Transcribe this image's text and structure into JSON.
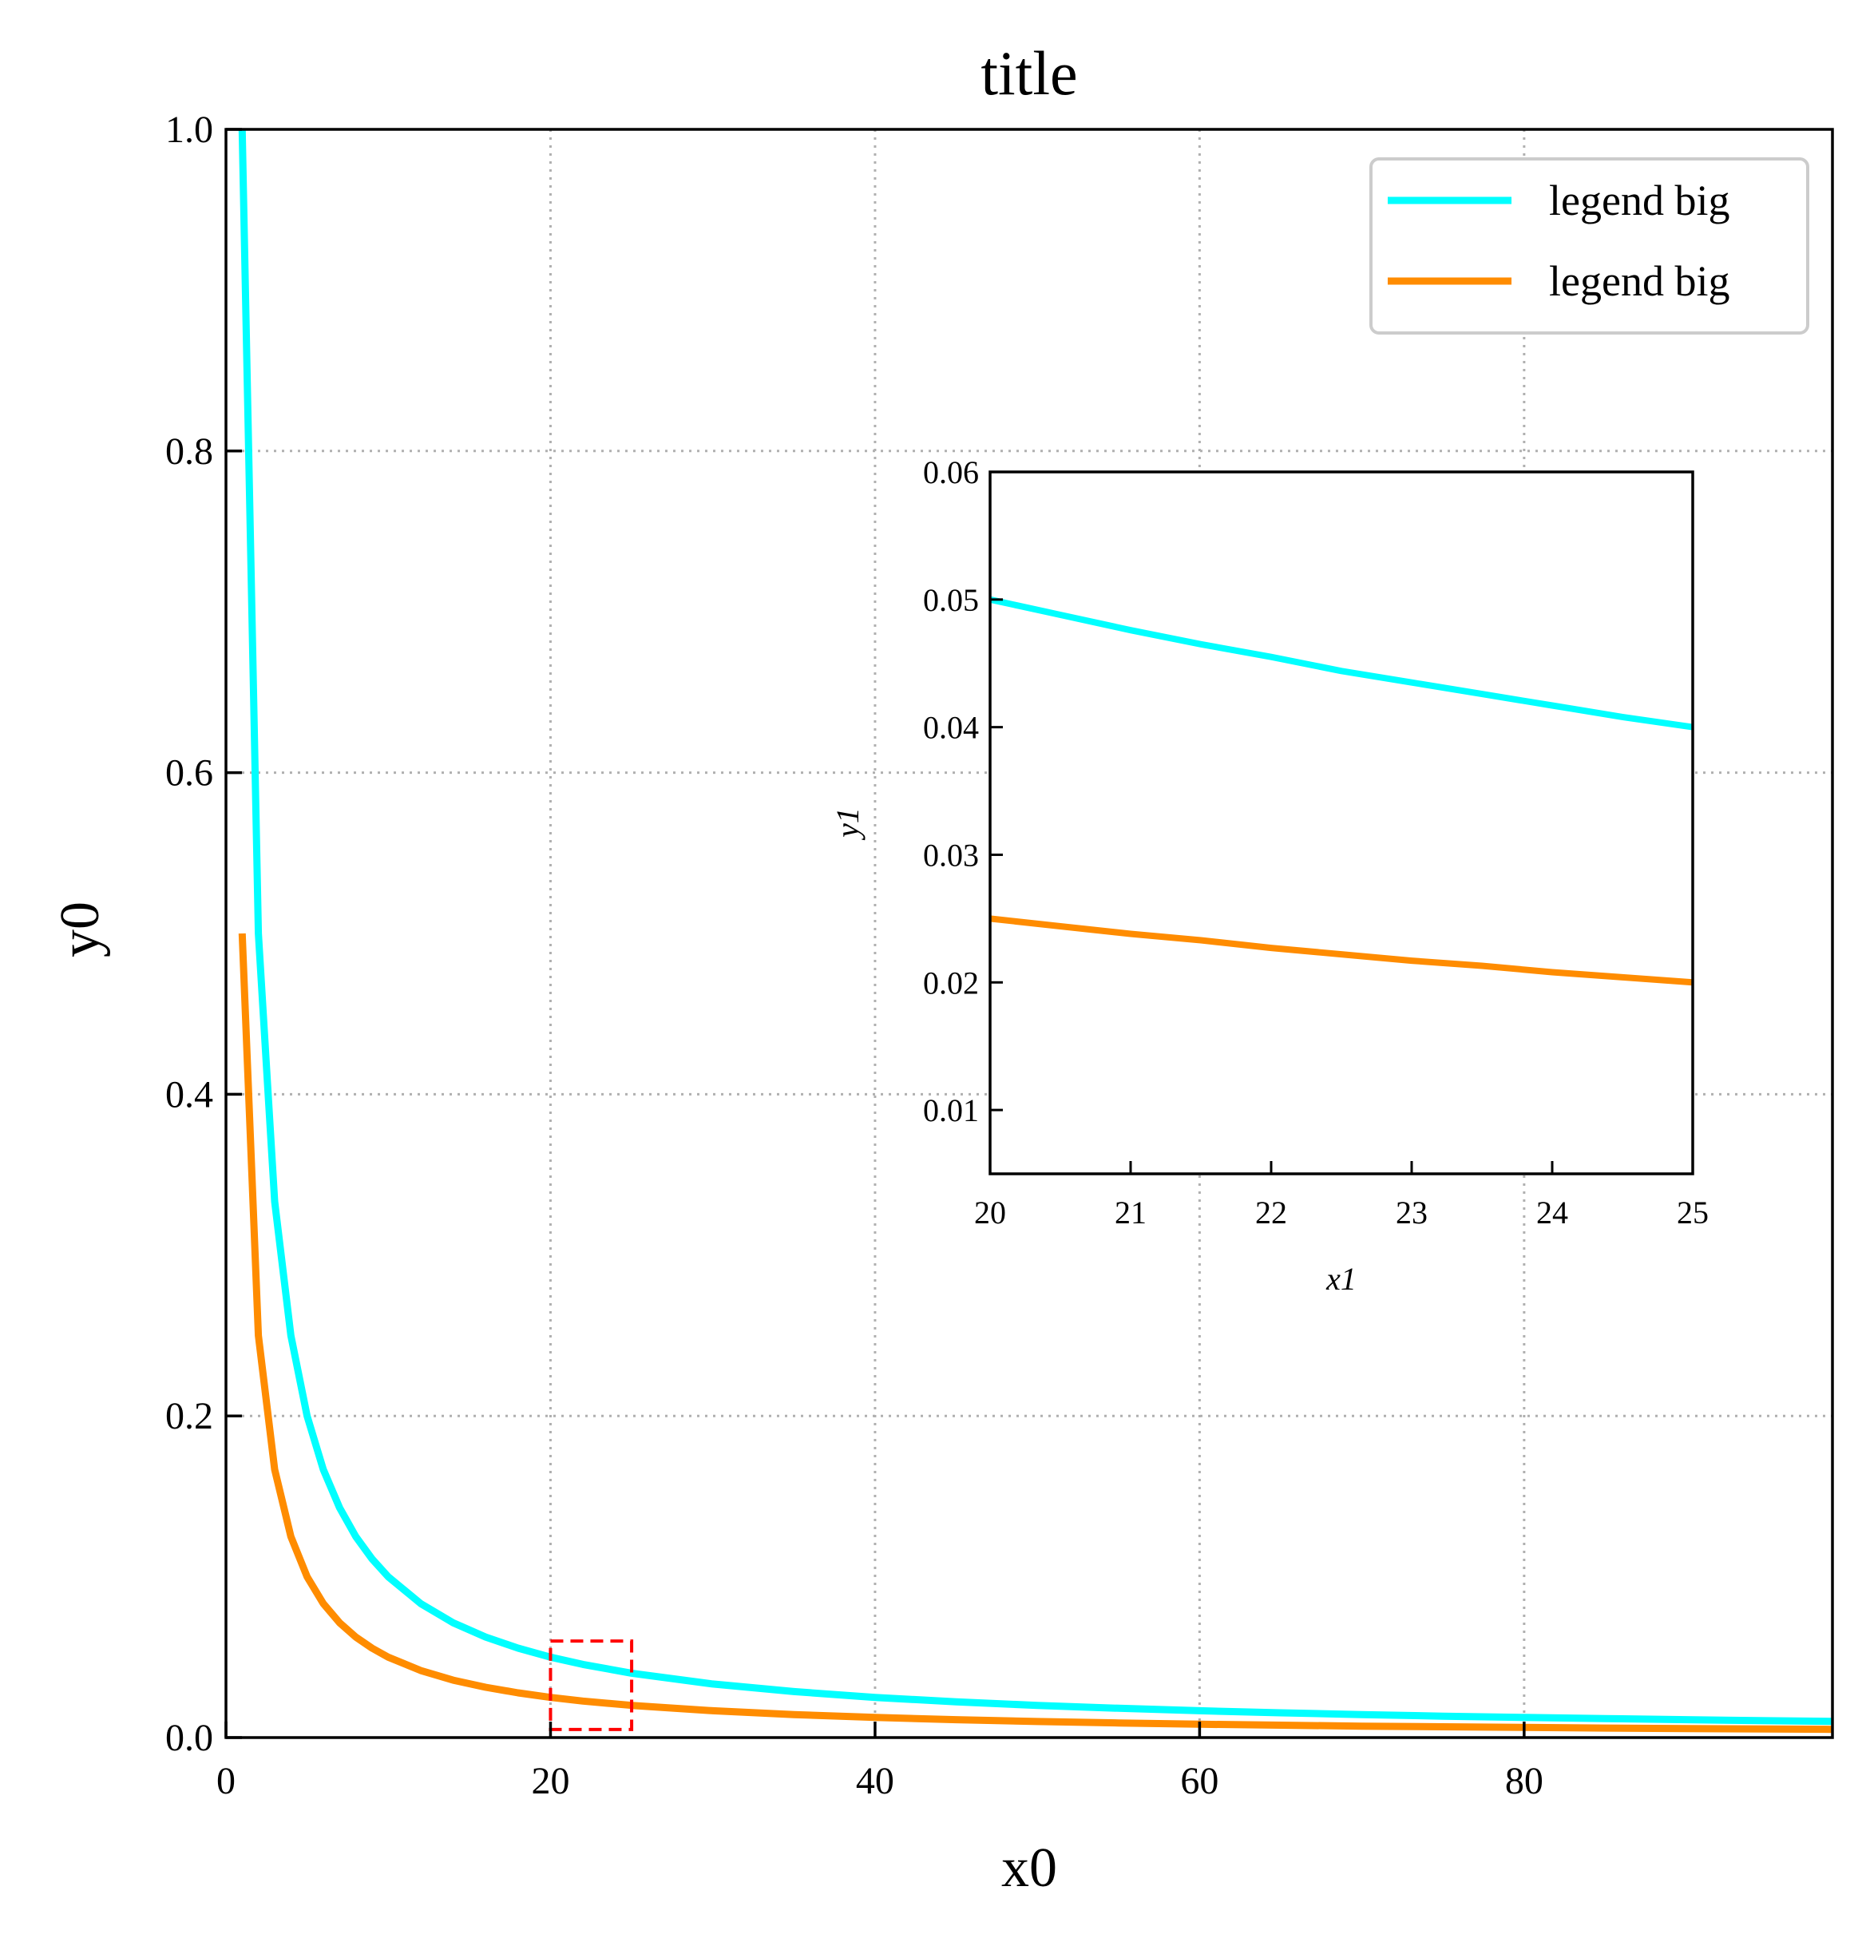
{
  "chart_data": [
    {
      "panel": "main",
      "type": "line",
      "title": "title",
      "xlabel": "x0",
      "ylabel": "y0",
      "xlim": [
        0,
        99
      ],
      "ylim": [
        0.0,
        1.0
      ],
      "xticks": [
        0,
        20,
        40,
        60,
        80
      ],
      "xtick_labels": [
        "0",
        "20",
        "40",
        "60",
        "80"
      ],
      "yticks": [
        0.0,
        0.2,
        0.4,
        0.6,
        0.8,
        1.0
      ],
      "ytick_labels": [
        "0.0",
        "0.2",
        "0.4",
        "0.6",
        "0.8",
        "1.0"
      ],
      "grid": true,
      "grid_style": "dotted",
      "legend_position": "top-right",
      "x": [
        1,
        2,
        3,
        4,
        5,
        6,
        7,
        8,
        9,
        10,
        12,
        14,
        16,
        18,
        20,
        22,
        25,
        30,
        35,
        40,
        45,
        50,
        55,
        60,
        65,
        70,
        75,
        80,
        85,
        90,
        95,
        99
      ],
      "series": [
        {
          "name": "legend big",
          "color": "#00ffff",
          "values": [
            1.0,
            0.5,
            0.3333,
            0.25,
            0.2,
            0.1667,
            0.1429,
            0.125,
            0.1111,
            0.1,
            0.0833,
            0.0714,
            0.0625,
            0.0556,
            0.05,
            0.0455,
            0.04,
            0.0333,
            0.0286,
            0.025,
            0.0222,
            0.02,
            0.0182,
            0.0167,
            0.0154,
            0.0143,
            0.0133,
            0.0125,
            0.0118,
            0.0111,
            0.0105,
            0.0101
          ]
        },
        {
          "name": "legend big",
          "color": "#ff8c00",
          "values": [
            0.5,
            0.25,
            0.1667,
            0.125,
            0.1,
            0.0833,
            0.0714,
            0.0625,
            0.0556,
            0.05,
            0.0417,
            0.0357,
            0.0313,
            0.0278,
            0.025,
            0.0227,
            0.02,
            0.0167,
            0.0143,
            0.0125,
            0.0111,
            0.01,
            0.0091,
            0.0083,
            0.0077,
            0.0071,
            0.0067,
            0.0063,
            0.0059,
            0.0056,
            0.0053,
            0.0051
          ]
        }
      ],
      "zoom_box": {
        "x": [
          20,
          25
        ],
        "y": [
          0.005,
          0.06
        ],
        "color": "#ff0000",
        "style": "dashed"
      }
    },
    {
      "panel": "inset",
      "type": "line",
      "xlabel": "x1",
      "ylabel": "y1",
      "xlim": [
        20,
        25
      ],
      "ylim": [
        0.005,
        0.06
      ],
      "xticks": [
        20,
        21,
        22,
        23,
        24,
        25
      ],
      "xtick_labels": [
        "20",
        "21",
        "22",
        "23",
        "24",
        "25"
      ],
      "yticks": [
        0.01,
        0.02,
        0.03,
        0.04,
        0.05,
        0.06
      ],
      "ytick_labels": [
        "0.01",
        "0.02",
        "0.03",
        "0.04",
        "0.05",
        "0.06"
      ],
      "grid": false,
      "x": [
        20,
        20.5,
        21,
        21.5,
        22,
        22.5,
        23,
        23.5,
        24,
        24.5,
        25
      ],
      "series": [
        {
          "color": "#00ffff",
          "values": [
            0.05,
            0.0488,
            0.0476,
            0.0465,
            0.0455,
            0.0444,
            0.0435,
            0.0426,
            0.0417,
            0.0408,
            0.04
          ]
        },
        {
          "color": "#ff8c00",
          "values": [
            0.025,
            0.0244,
            0.0238,
            0.0233,
            0.0227,
            0.0222,
            0.0217,
            0.0213,
            0.0208,
            0.0204,
            0.02
          ]
        }
      ]
    }
  ]
}
